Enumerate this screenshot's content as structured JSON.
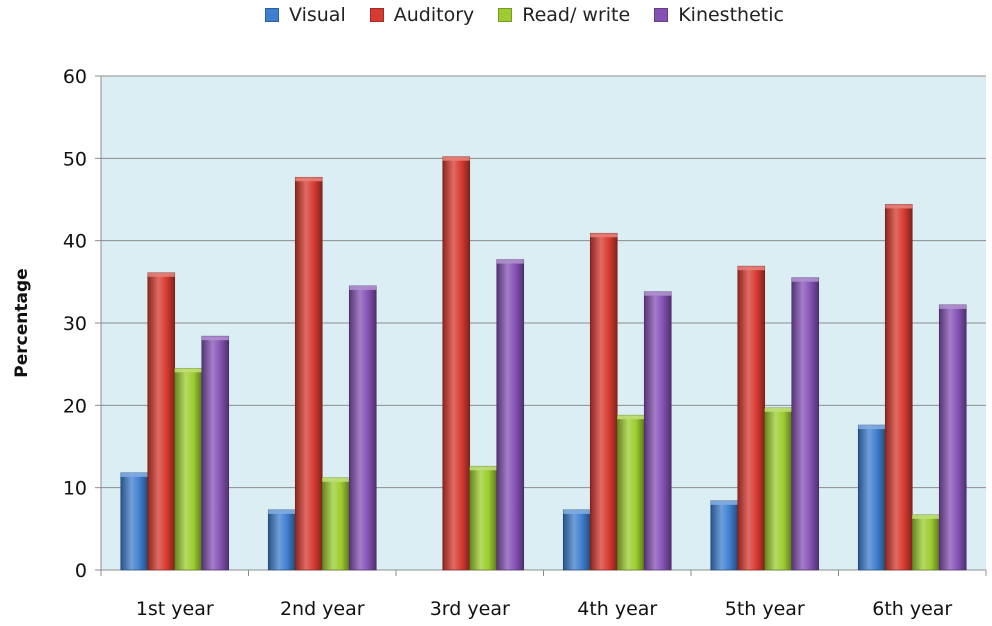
{
  "chart_data": {
    "type": "bar",
    "title": "",
    "xlabel": "",
    "ylabel": "Percentage",
    "ylim": [
      0,
      60
    ],
    "yticks": [
      0,
      10,
      20,
      30,
      40,
      50,
      60
    ],
    "grid": true,
    "legend_position": "top",
    "categories": [
      "1st year",
      "2nd year",
      "3rd year",
      "4th year",
      "5th year",
      "6th year"
    ],
    "series": [
      {
        "name": "Visual",
        "color": "#3f7fcf",
        "values": [
          11.8,
          7.3,
          0,
          7.3,
          8.4,
          17.6
        ]
      },
      {
        "name": "Auditory",
        "color": "#d63a30",
        "values": [
          36.1,
          47.7,
          50.2,
          40.9,
          36.9,
          44.4
        ]
      },
      {
        "name": "Read/ write",
        "color": "#9ccc2f",
        "values": [
          24.5,
          11.2,
          12.6,
          18.8,
          19.7,
          6.7
        ]
      },
      {
        "name": "Kinesthetic",
        "color": "#8452b4",
        "values": [
          28.4,
          34.5,
          37.7,
          33.8,
          35.5,
          32.2
        ]
      }
    ]
  }
}
